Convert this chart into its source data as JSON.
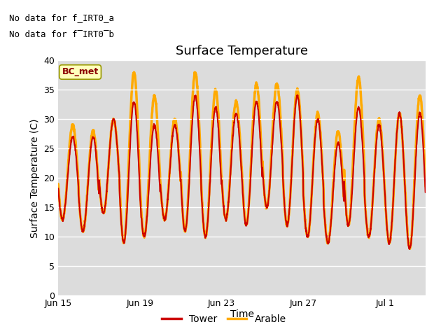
{
  "title": "Surface Temperature",
  "ylabel": "Surface Temperature (C)",
  "xlabel": "Time",
  "ylim": [
    0,
    40
  ],
  "xlim_days": [
    0,
    18
  ],
  "x_ticks_days": [
    0,
    4,
    8,
    12,
    16
  ],
  "x_tick_labels": [
    "Jun 15",
    "Jun 19",
    "Jun 23",
    "Jun 27",
    "Jul 1"
  ],
  "y_ticks": [
    0,
    5,
    10,
    15,
    20,
    25,
    30,
    35,
    40
  ],
  "bg_color": "#dcdcdc",
  "fig_color": "#ffffff",
  "tower_color": "#cc0000",
  "arable_color": "#ffaa00",
  "bc_met_label": "BC_met",
  "bc_met_bg": "#ffffbb",
  "bc_met_border": "#999900",
  "note1": "No data for f_IRT0_a",
  "note2": "No data for f̅IRT0̅b",
  "legend_tower": "Tower",
  "legend_arable": "Arable",
  "title_fontsize": 13,
  "axis_label_fontsize": 10,
  "tick_fontsize": 9,
  "note_fontsize": 9,
  "arable_lw": 2.5,
  "tower_lw": 1.5,
  "daily_mins": [
    13,
    11,
    14,
    9,
    10,
    13,
    11,
    10,
    13,
    12,
    15,
    12,
    10,
    9,
    12,
    10,
    9,
    8
  ],
  "daily_maxs_arable": [
    29,
    28,
    30,
    38,
    34,
    30,
    38,
    35,
    33,
    36,
    36,
    35,
    31,
    28,
    37,
    30,
    31,
    34
  ],
  "daily_maxs_tower": [
    27,
    27,
    30,
    33,
    29,
    29,
    34,
    32,
    31,
    33,
    33,
    34,
    30,
    26,
    32,
    29,
    31,
    31
  ],
  "peak_hour": 14,
  "min_hour": 5
}
